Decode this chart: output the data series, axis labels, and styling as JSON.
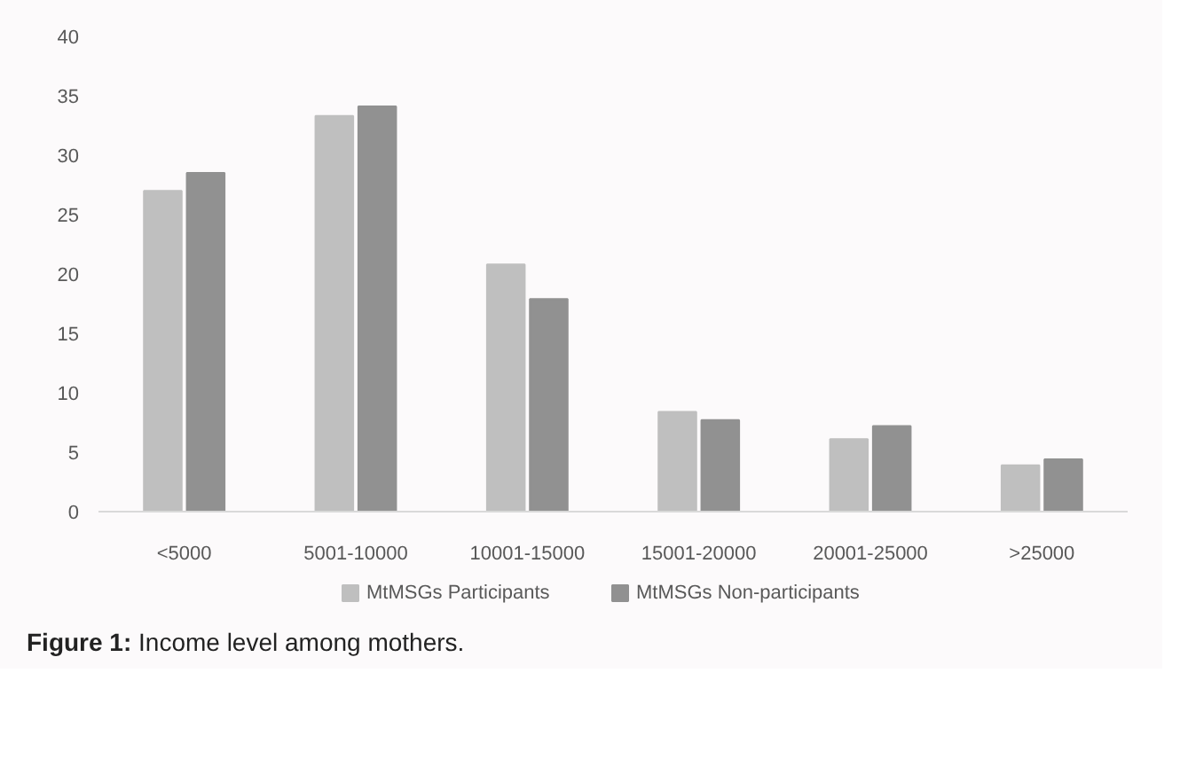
{
  "chart_data": {
    "type": "bar",
    "categories": [
      "<5000",
      "5001-10000",
      "10001-15000",
      "15001-20000",
      "20001-25000",
      ">25000"
    ],
    "series": [
      {
        "name": "MtMSGs Participants",
        "color": "#bfbfbf",
        "values": [
          27.0,
          33.3,
          20.8,
          8.4,
          6.1,
          3.9
        ]
      },
      {
        "name": "MtMSGs Non-participants",
        "color": "#919191",
        "values": [
          28.5,
          34.1,
          17.9,
          7.7,
          7.2,
          4.4
        ]
      }
    ],
    "ylim": [
      0,
      40
    ],
    "yticks": [
      0,
      5,
      10,
      15,
      20,
      25,
      30,
      35,
      40
    ],
    "grid": false,
    "legend": "bottom",
    "annotations": [
      "Figure 1: Income level among mothers."
    ]
  }
}
